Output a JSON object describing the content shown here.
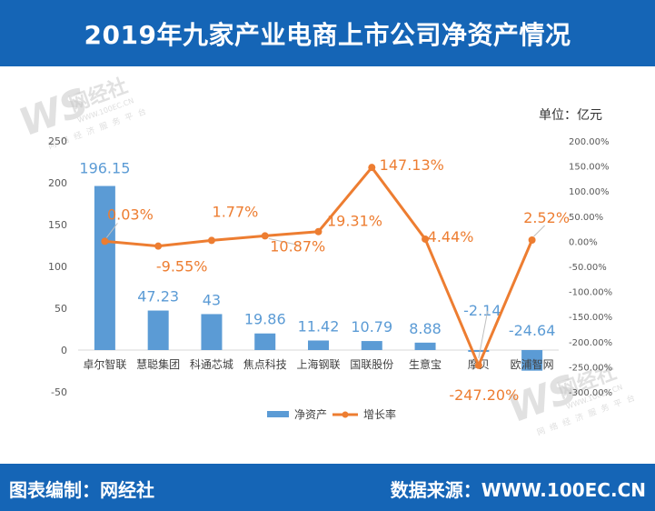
{
  "header": {
    "title": "2019年九家产业电商上市公司净资产情况"
  },
  "unit_label": "单位：亿元",
  "watermark": {
    "logo_text": "网经社",
    "url": "WWW.100EC.CN",
    "slogan": "网络经济服务平台"
  },
  "footer": {
    "left": "图表编制：网经社",
    "right": "数据来源：WWW.100EC.CN"
  },
  "chart_data": {
    "type": "bar",
    "categories": [
      "卓尔智联",
      "慧聪集团",
      "科通芯城",
      "焦点科技",
      "上海钢联",
      "国联股份",
      "生意宝",
      "摩贝",
      "欧浦智网"
    ],
    "series": [
      {
        "name": "净资产",
        "type": "bar",
        "axis": "left",
        "color": "#5b9bd5",
        "values": [
          196.15,
          47.23,
          43,
          19.86,
          11.42,
          10.79,
          8.88,
          -2.14,
          -24.64
        ],
        "labels": [
          "196.15",
          "47.23",
          "43",
          "19.86",
          "11.42",
          "10.79",
          "8.88",
          "-2.14",
          "-24.64"
        ]
      },
      {
        "name": "增长率",
        "type": "line",
        "axis": "right",
        "color": "#ed7d31",
        "values": [
          0.03,
          -9.55,
          1.77,
          10.87,
          19.31,
          147.13,
          4.44,
          -247.2,
          2.52
        ],
        "labels": [
          "0.03%",
          "-9.55%",
          "1.77%",
          "10.87%",
          "19.31%",
          "147.13%",
          "4.44%",
          "-247.20%",
          "2.52%"
        ]
      }
    ],
    "y_left": {
      "min": -50,
      "max": 250,
      "ticks": [
        "250",
        "200",
        "150",
        "100",
        "50",
        "0",
        "-50"
      ]
    },
    "y_right": {
      "min": -300,
      "max": 200,
      "ticks": [
        "200.00%",
        "150.00%",
        "100.00%",
        "50.00%",
        "0.00%",
        "-50.00%",
        "-100.00%",
        "-150.00%",
        "-200.00%",
        "-250.00%",
        "-300.00%"
      ]
    },
    "legend": [
      "净资产",
      "增长率"
    ],
    "legend_position": "bottom",
    "grid": false
  }
}
